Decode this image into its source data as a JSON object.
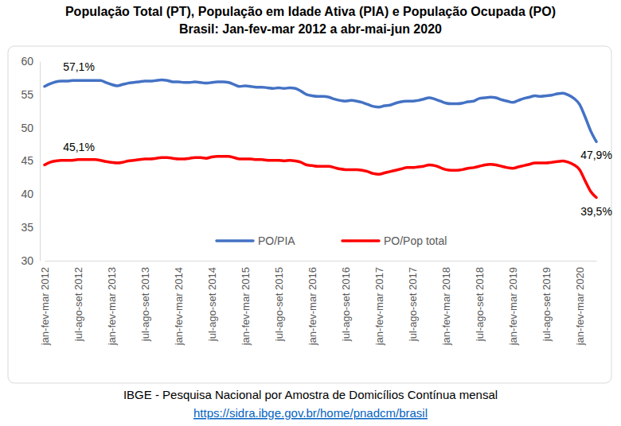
{
  "chart_data": {
    "type": "line",
    "title": "População Total (PT), População em Idade Ativa (PIA) e População Ocupada (PO)",
    "subtitle": "Brasil: Jan-fev-mar 2012 a abr-mai-jun 2020",
    "source": "IBGE - Pesquisa Nacional por Amostra de Domicílios Contínua mensal",
    "source_url": "https://sidra.ibge.gov.br/home/pnadcm/brasil",
    "categories": [
      "jan-fev-mar 2012",
      null,
      null,
      null,
      null,
      null,
      "jul-ago-set 2012",
      null,
      null,
      null,
      null,
      null,
      "jan-fev-mar 2013",
      null,
      null,
      null,
      null,
      null,
      "jul-ago-set 2013",
      null,
      null,
      null,
      null,
      null,
      "jan-fev-mar 2014",
      null,
      null,
      null,
      null,
      null,
      "jul-ago-set 2014",
      null,
      null,
      null,
      null,
      null,
      "jan-fev-mar 2015",
      null,
      null,
      null,
      null,
      null,
      "jul-ago-set 2015",
      null,
      null,
      null,
      null,
      null,
      "jan-fev-mar 2016",
      null,
      null,
      null,
      null,
      null,
      "jul-ago-set 2016",
      null,
      null,
      null,
      null,
      null,
      "jan-fev-mar 2017",
      null,
      null,
      null,
      null,
      null,
      "jul-ago-set 2017",
      null,
      null,
      null,
      null,
      null,
      "jan-fev-mar 2018",
      null,
      null,
      null,
      null,
      null,
      "jul-ago-set 2018",
      null,
      null,
      null,
      null,
      null,
      "jan-fev-mar 2019",
      null,
      null,
      null,
      null,
      null,
      "jul-ago-set 2019",
      null,
      null,
      null,
      null,
      null,
      "jan-fev-mar 2020",
      null,
      null,
      null
    ],
    "series": [
      {
        "name": "PO/PIA",
        "color": "#4472c4",
        "values": [
          56.2,
          56.6,
          56.9,
          57.0,
          57.0,
          57.1,
          57.1,
          57.1,
          57.1,
          57.1,
          57.1,
          56.8,
          56.5,
          56.3,
          56.5,
          56.7,
          56.8,
          56.9,
          57.0,
          57.0,
          57.1,
          57.2,
          57.1,
          56.9,
          56.9,
          56.8,
          56.8,
          56.9,
          56.8,
          56.7,
          56.8,
          56.9,
          56.9,
          56.8,
          56.5,
          56.2,
          56.3,
          56.2,
          56.1,
          56.1,
          56.0,
          55.9,
          56.0,
          55.9,
          56.0,
          55.9,
          55.5,
          55.0,
          54.8,
          54.7,
          54.7,
          54.6,
          54.3,
          54.1,
          54.0,
          54.1,
          54.0,
          53.8,
          53.5,
          53.2,
          53.1,
          53.3,
          53.4,
          53.7,
          53.9,
          54.0,
          54.0,
          54.1,
          54.3,
          54.5,
          54.3,
          54.0,
          53.7,
          53.6,
          53.6,
          53.7,
          53.9,
          54.0,
          54.4,
          54.5,
          54.6,
          54.5,
          54.2,
          54.0,
          53.8,
          54.1,
          54.4,
          54.6,
          54.8,
          54.7,
          54.8,
          54.9,
          55.1,
          55.2,
          54.9,
          54.4,
          53.5,
          51.6,
          49.5,
          47.9
        ],
        "value_labels": [
          null,
          null,
          null,
          null,
          null,
          "57,1%",
          null,
          null,
          null,
          null,
          null,
          null,
          null,
          null,
          null,
          null,
          null,
          null,
          null,
          null,
          null,
          null,
          null,
          null,
          null,
          null,
          null,
          null,
          null,
          null,
          null,
          null,
          null,
          null,
          null,
          null,
          null,
          null,
          null,
          null,
          null,
          null,
          null,
          null,
          null,
          null,
          null,
          null,
          null,
          null,
          null,
          null,
          null,
          null,
          null,
          null,
          null,
          null,
          null,
          null,
          null,
          null,
          null,
          null,
          null,
          null,
          null,
          null,
          null,
          null,
          null,
          null,
          null,
          null,
          null,
          null,
          null,
          null,
          null,
          null,
          null,
          null,
          null,
          null,
          null,
          null,
          null,
          null,
          null,
          null,
          null,
          null,
          null,
          null,
          null,
          null,
          null,
          null,
          null,
          "47,9%"
        ]
      },
      {
        "name": "PO/Pop total",
        "color": "#ff0000",
        "values": [
          44.4,
          44.8,
          45.0,
          45.1,
          45.1,
          45.1,
          45.2,
          45.2,
          45.2,
          45.2,
          45.1,
          44.9,
          44.8,
          44.7,
          44.8,
          45.0,
          45.1,
          45.2,
          45.3,
          45.3,
          45.4,
          45.5,
          45.5,
          45.4,
          45.3,
          45.3,
          45.4,
          45.5,
          45.5,
          45.4,
          45.6,
          45.7,
          45.7,
          45.7,
          45.5,
          45.3,
          45.3,
          45.3,
          45.2,
          45.2,
          45.1,
          45.1,
          45.1,
          45.0,
          45.1,
          45.0,
          44.8,
          44.4,
          44.3,
          44.2,
          44.2,
          44.2,
          44.0,
          43.8,
          43.7,
          43.7,
          43.7,
          43.6,
          43.4,
          43.1,
          43.0,
          43.2,
          43.4,
          43.6,
          43.8,
          44.0,
          44.0,
          44.1,
          44.2,
          44.4,
          44.3,
          44.0,
          43.7,
          43.6,
          43.6,
          43.7,
          43.9,
          44.0,
          44.2,
          44.4,
          44.5,
          44.4,
          44.2,
          44.0,
          43.9,
          44.1,
          44.3,
          44.5,
          44.7,
          44.7,
          44.7,
          44.8,
          44.9,
          45.0,
          44.8,
          44.4,
          43.7,
          42.0,
          40.4,
          39.5
        ],
        "value_labels": [
          null,
          null,
          null,
          null,
          null,
          "45,1%",
          null,
          null,
          null,
          null,
          null,
          null,
          null,
          null,
          null,
          null,
          null,
          null,
          null,
          null,
          null,
          null,
          null,
          null,
          null,
          null,
          null,
          null,
          null,
          null,
          null,
          null,
          null,
          null,
          null,
          null,
          null,
          null,
          null,
          null,
          null,
          null,
          null,
          null,
          null,
          null,
          null,
          null,
          null,
          null,
          null,
          null,
          null,
          null,
          null,
          null,
          null,
          null,
          null,
          null,
          null,
          null,
          null,
          null,
          null,
          null,
          null,
          null,
          null,
          null,
          null,
          null,
          null,
          null,
          null,
          null,
          null,
          null,
          null,
          null,
          null,
          null,
          null,
          null,
          null,
          null,
          null,
          null,
          null,
          null,
          null,
          null,
          null,
          null,
          null,
          null,
          null,
          null,
          null,
          "39,5%"
        ]
      }
    ],
    "ylim": [
      30,
      60
    ],
    "yticks": [
      30,
      35,
      40,
      45,
      50,
      55,
      60
    ],
    "grid": false,
    "legend": "bottom"
  }
}
